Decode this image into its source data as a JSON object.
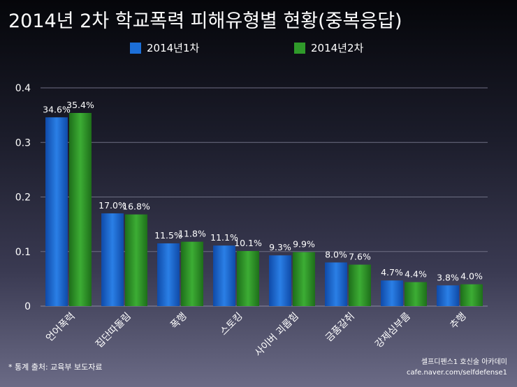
{
  "chart_data": {
    "type": "bar",
    "title": "2014년 2차 학교폭력 피해유형별 현황(중복응답)",
    "categories": [
      "언어폭력",
      "집단따돌림",
      "폭행",
      "스토킹",
      "사이버 괴롭힘",
      "금품갈취",
      "강제심부름",
      "추행"
    ],
    "series": [
      {
        "name": "2014년1차",
        "values": [
          0.346,
          0.17,
          0.115,
          0.111,
          0.093,
          0.08,
          0.047,
          0.038
        ],
        "labels": [
          "34.6%",
          "17.0%",
          "11.5%",
          "11.1%",
          "9.3%",
          "8.0%",
          "4.7%",
          "3.8%"
        ],
        "color": "#1c6fd8"
      },
      {
        "name": "2014년2차",
        "values": [
          0.354,
          0.168,
          0.118,
          0.101,
          0.099,
          0.076,
          0.044,
          0.04
        ],
        "labels": [
          "35.4%",
          "16.8%",
          "11.8%",
          "10.1%",
          "9.9%",
          "7.6%",
          "4.4%",
          "4.0%"
        ],
        "color": "#2f9a2a"
      }
    ],
    "ylim": [
      0,
      0.4
    ],
    "yticks": [
      "0",
      "0.1",
      "0.2",
      "0.3",
      "0.4"
    ],
    "grid": true,
    "legend": "top"
  },
  "footnote": "* 통계 출처: 교육부 보도자료",
  "credit": {
    "line1": "셀프디펜스1 호신술 아카데미",
    "line2": "cafe.naver.com/selfdefense1"
  }
}
